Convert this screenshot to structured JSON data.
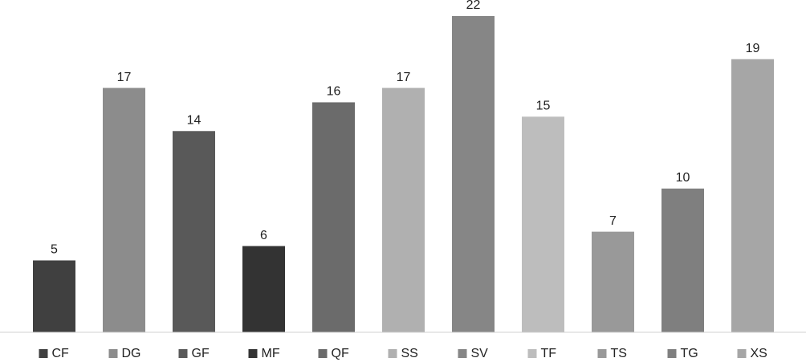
{
  "chart_data": {
    "type": "bar",
    "categories": [
      "CF",
      "DG",
      "GF",
      "MF",
      "QF",
      "SS",
      "SV",
      "TF",
      "TS",
      "TG",
      "XS"
    ],
    "values": [
      5,
      17,
      14,
      6,
      16,
      17,
      22,
      15,
      7,
      10,
      19
    ],
    "colors": [
      "#404040",
      "#8c8c8c",
      "#595959",
      "#333333",
      "#6b6b6b",
      "#b0b0b0",
      "#868686",
      "#bdbdbd",
      "#999999",
      "#7f7f7f",
      "#a6a6a6"
    ],
    "legend": "bottom"
  }
}
